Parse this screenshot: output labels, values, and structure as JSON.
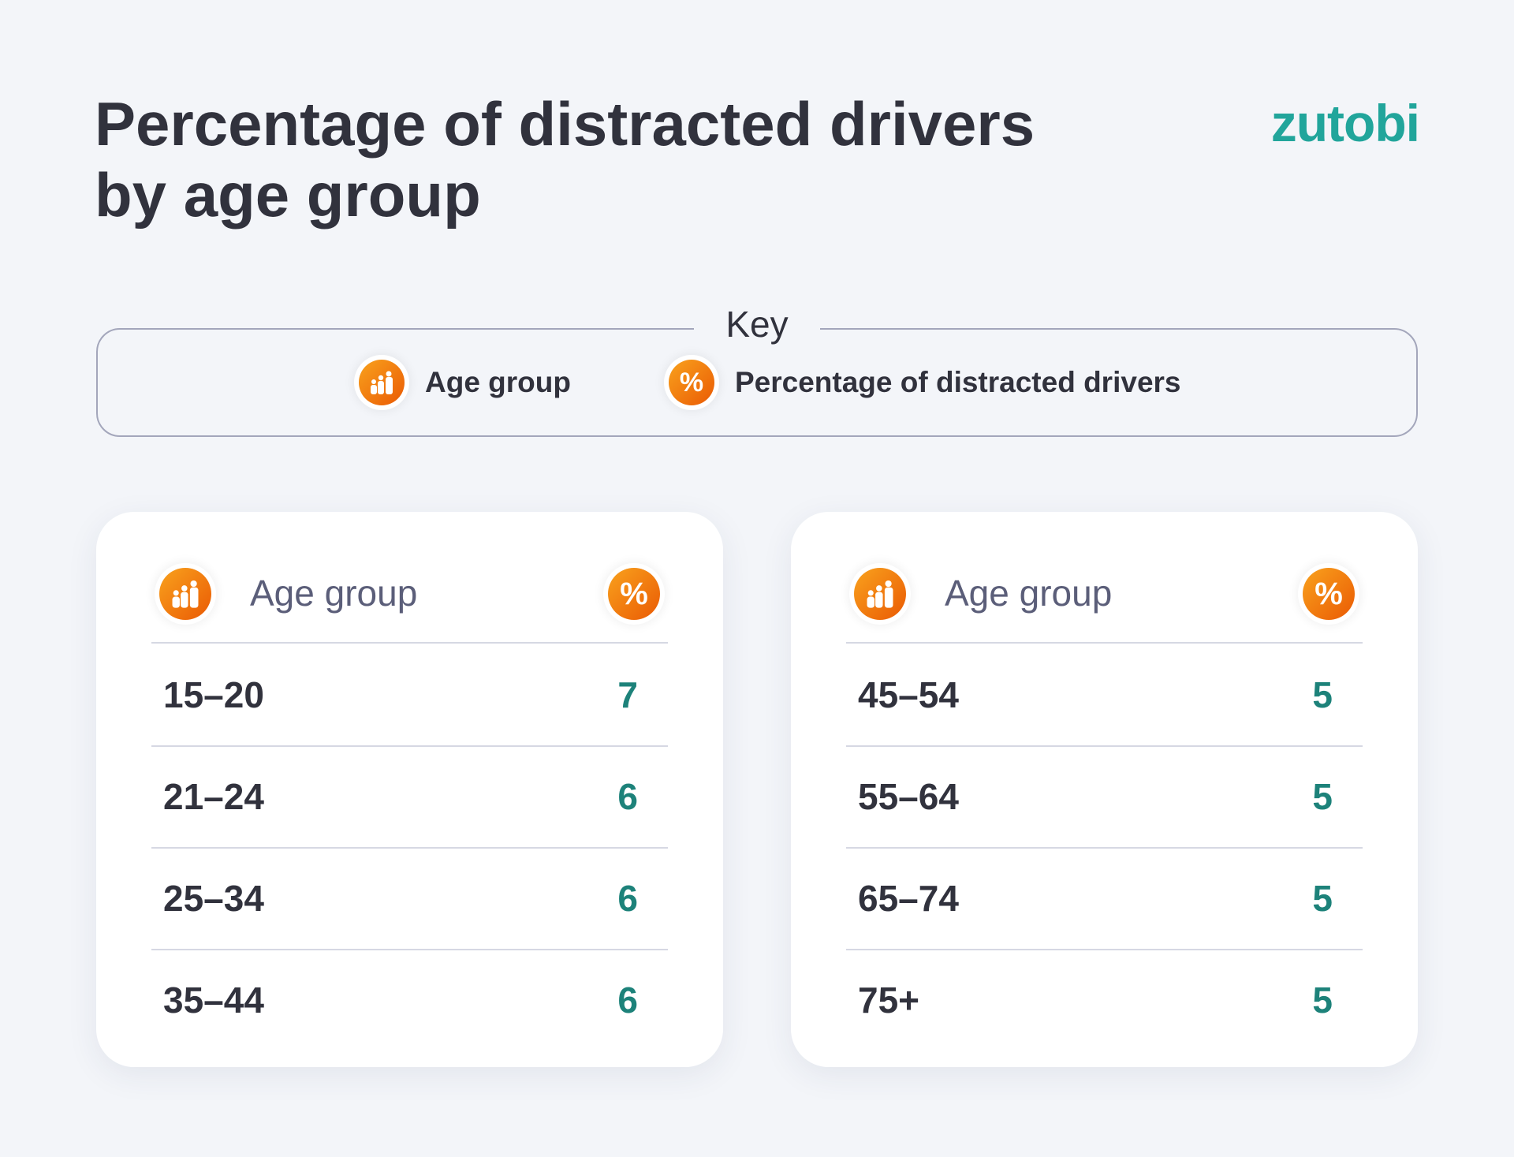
{
  "title": "Percentage of distracted drivers by age group",
  "logo": "zutobi",
  "colors": {
    "accent": "#21a59b",
    "value": "#1d827a",
    "icon_gradient": [
      "#f9a21d",
      "#ea5a04"
    ]
  },
  "key": {
    "title": "Key",
    "items": [
      {
        "icon": "family-icon",
        "label": "Age group"
      },
      {
        "icon": "percent-icon",
        "label": "Percentage of distracted drivers"
      }
    ]
  },
  "tables": [
    {
      "header": "Age group",
      "rows": [
        {
          "age": "15–20",
          "value": "7"
        },
        {
          "age": "21–24",
          "value": "6"
        },
        {
          "age": "25–34",
          "value": "6"
        },
        {
          "age": "35–44",
          "value": "6"
        }
      ]
    },
    {
      "header": "Age group",
      "rows": [
        {
          "age": "45–54",
          "value": "5"
        },
        {
          "age": "55–64",
          "value": "5"
        },
        {
          "age": "65–74",
          "value": "5"
        },
        {
          "age": "75+",
          "value": "5"
        }
      ]
    }
  ]
}
